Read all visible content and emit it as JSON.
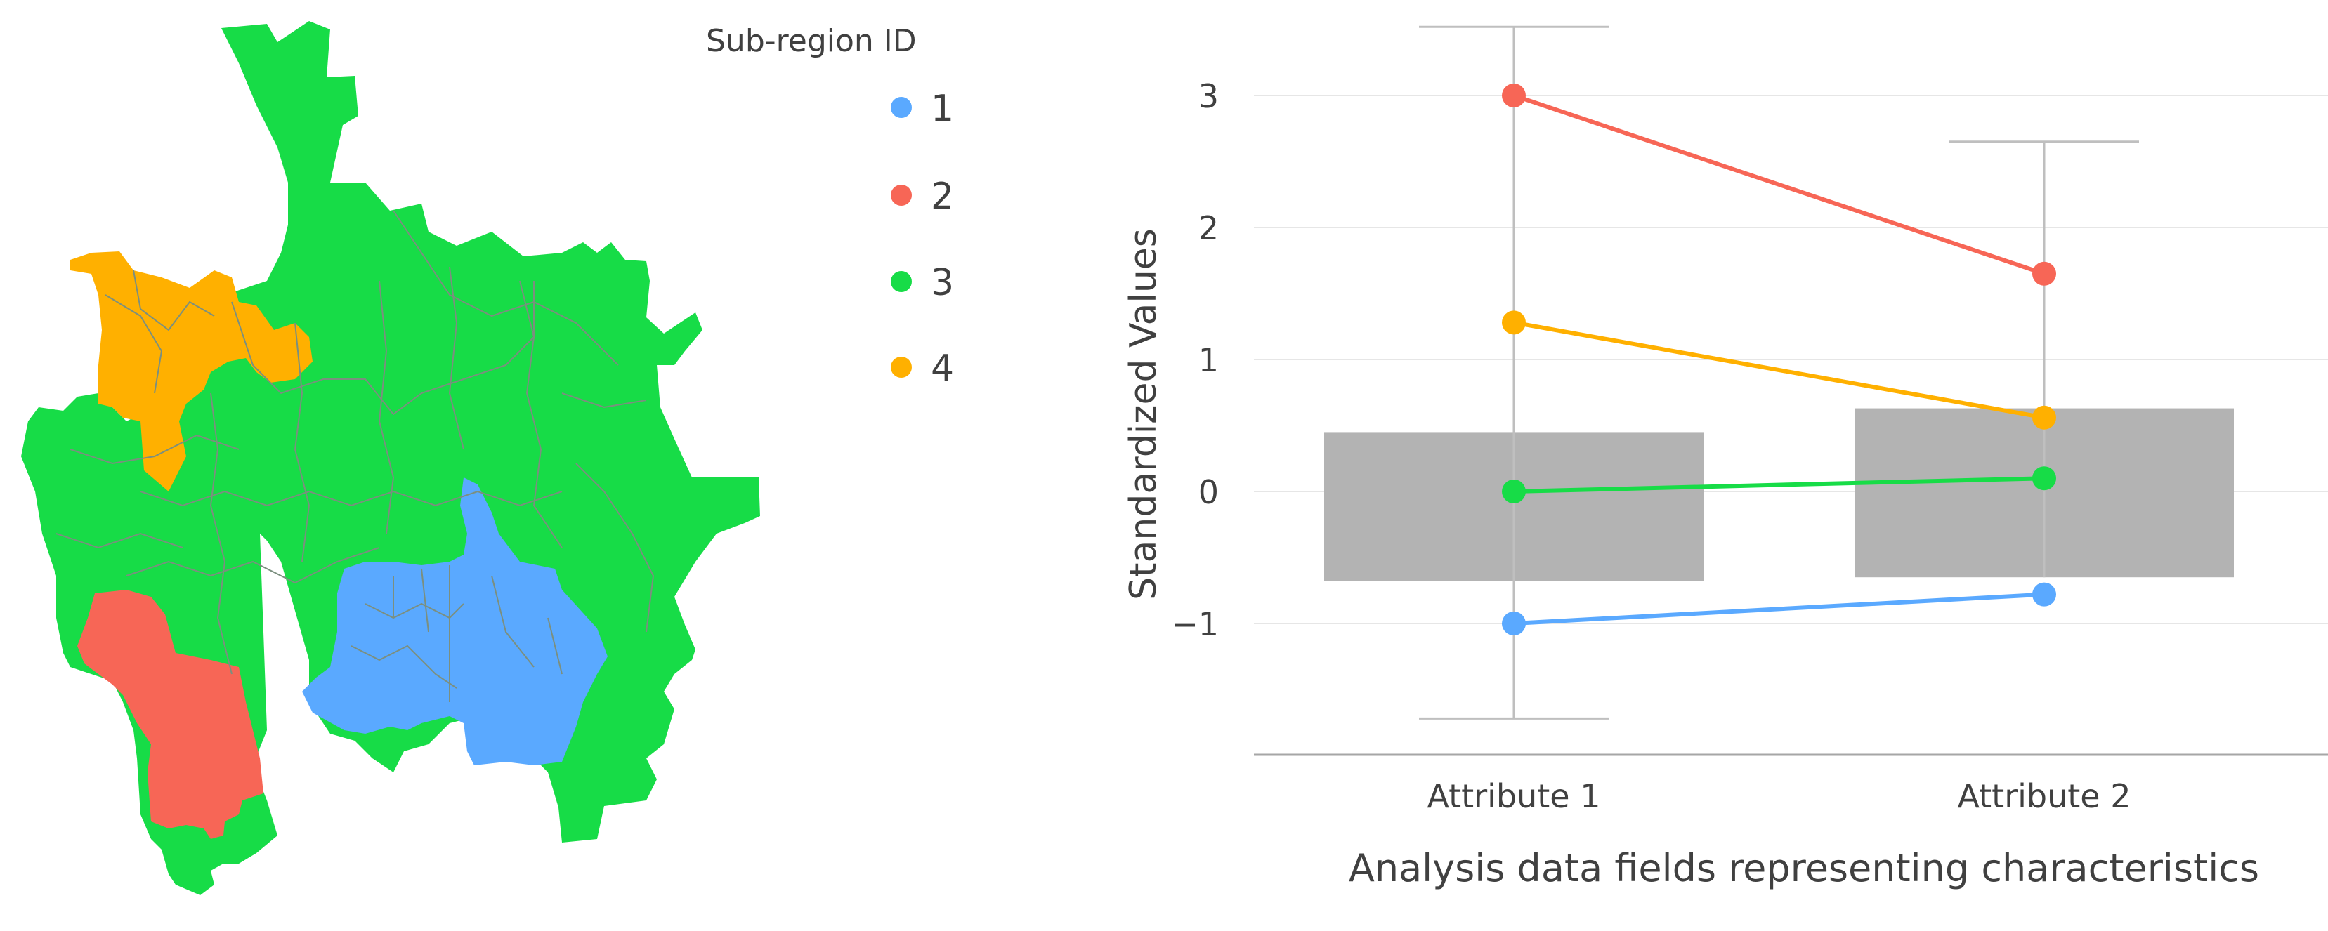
{
  "legend": {
    "title": "Sub-region ID",
    "items": [
      {
        "label": "1",
        "color": "#5aa9ff"
      },
      {
        "label": "2",
        "color": "#f76656"
      },
      {
        "label": "3",
        "color": "#17dc47"
      },
      {
        "label": "4",
        "color": "#ffb000"
      }
    ]
  },
  "map": {
    "colors": {
      "1": "#5aa9ff",
      "2": "#f76656",
      "3": "#17dc47",
      "4": "#ffb000",
      "border": "#7b8f7f"
    }
  },
  "chart_data": {
    "type": "line",
    "title": "",
    "xlabel": "Analysis data fields representing characteristics",
    "ylabel": "Standardized Values",
    "categories": [
      "Attribute 1",
      "Attribute 2"
    ],
    "ylim": [
      -2,
      3.5
    ],
    "yticks": [
      -1,
      0,
      1,
      2,
      3
    ],
    "ytick_labels": [
      "−1",
      "0",
      "1",
      "2",
      "3"
    ],
    "grid": true,
    "box": [
      {
        "category": "Attribute 1",
        "q1": -0.68,
        "q3": 0.45,
        "whisker_low": -1.72,
        "whisker_high": 3.52
      },
      {
        "category": "Attribute 2",
        "q1": -0.65,
        "q3": 0.63,
        "whisker_low": null,
        "whisker_high": 2.65
      }
    ],
    "series": [
      {
        "name": "1",
        "color": "#5aa9ff",
        "values": [
          -1.0,
          -0.78
        ]
      },
      {
        "name": "2",
        "color": "#f76656",
        "values": [
          3.0,
          1.65
        ]
      },
      {
        "name": "3",
        "color": "#17dc47",
        "values": [
          0.0,
          0.1
        ]
      },
      {
        "name": "4",
        "color": "#ffb000",
        "values": [
          1.28,
          0.56
        ]
      }
    ]
  }
}
